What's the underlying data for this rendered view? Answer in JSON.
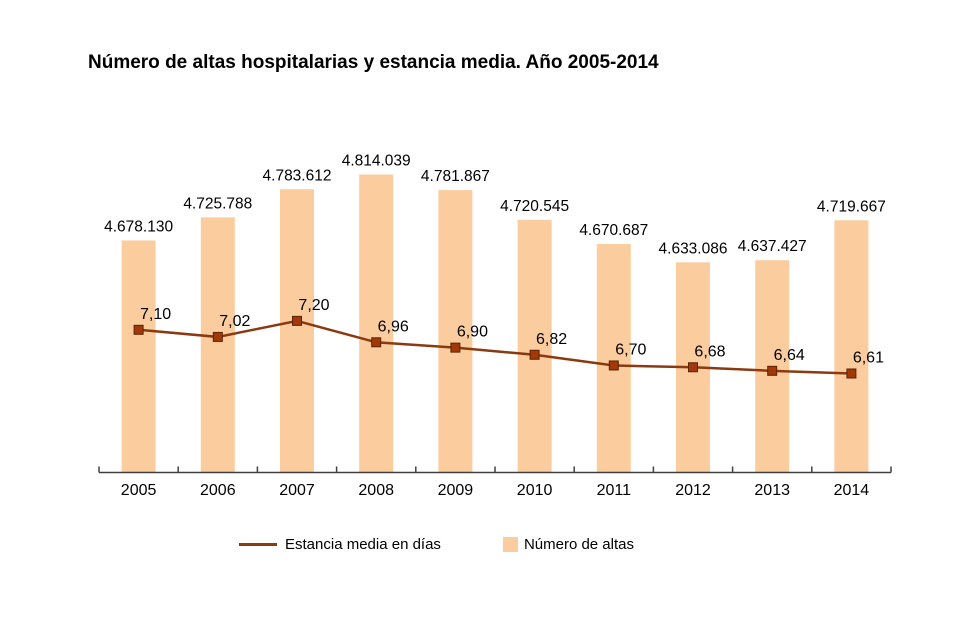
{
  "chart_data": {
    "type": "bar",
    "subtype": "bar-line-combo",
    "title": "Número de altas hospitalarias y estancia media. Año 2005-2014",
    "categories": [
      "2005",
      "2006",
      "2007",
      "2008",
      "2009",
      "2010",
      "2011",
      "2012",
      "2013",
      "2014"
    ],
    "series": [
      {
        "name": "Número de altas",
        "type": "bar",
        "axis": "primary",
        "values": [
          4678130,
          4725788,
          4783612,
          4814039,
          4781867,
          4720545,
          4670687,
          4633086,
          4637427,
          4719667
        ],
        "labels": [
          "4.678.130",
          "4.725.788",
          "4.783.612",
          "4.814.039",
          "4.781.867",
          "4.720.545",
          "4.670.687",
          "4.633.086",
          "4.637.427",
          "4.719.667"
        ]
      },
      {
        "name": "Estancia media en días",
        "type": "line",
        "axis": "secondary",
        "values": [
          7.1,
          7.02,
          7.2,
          6.96,
          6.9,
          6.82,
          6.7,
          6.68,
          6.64,
          6.61
        ],
        "labels": [
          "7,10",
          "7,02",
          "7,20",
          "6,96",
          "6,90",
          "6,82",
          "6,70",
          "6,68",
          "6,64",
          "6,61"
        ]
      }
    ],
    "axes": {
      "y_axis_visible": false,
      "x_ticks_visible": true,
      "primary_ylim": [
        4200000,
        4880000
      ],
      "secondary_ylim": [
        5.5,
        9.2
      ],
      "grid": "off",
      "data_labels": "on",
      "legend_position": "bottom-center"
    },
    "colors": {
      "bar": "#FACC9E",
      "line": "#8B3A10",
      "marker_fill": "#A13908",
      "marker_stroke": "#5F2205",
      "axis": "#404040",
      "text": "#000000"
    }
  }
}
